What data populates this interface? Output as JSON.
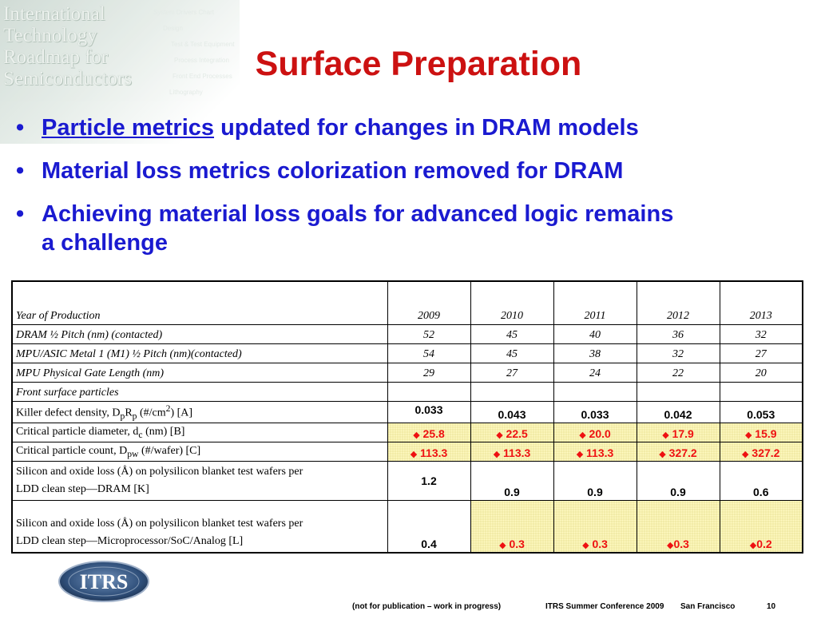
{
  "watermark": {
    "lines": [
      "International",
      "Technology",
      "Roadmap for",
      "Semiconductors"
    ],
    "menu": [
      "System Drivers Chart",
      "Design",
      "Test & Test Equipment",
      "Process Integration",
      "Front End Processes",
      "Lithography"
    ]
  },
  "title": "Surface Preparation",
  "bullets": [
    {
      "lead": "Particle metrics",
      "rest": " updated for changes in DRAM models"
    },
    {
      "lead": "",
      "rest": "Material loss metrics colorization removed for DRAM"
    },
    {
      "lead": "",
      "rest": "Achieving material loss goals for advanced logic remains a challenge"
    }
  ],
  "bullet_char": "•",
  "table": {
    "header": {
      "label": "Year of Production",
      "years": [
        "2009",
        "2010",
        "2011",
        "2012",
        "2013"
      ]
    },
    "rows": [
      {
        "label": "DRAM ½ Pitch (nm) (contacted)",
        "values": [
          "52",
          "45",
          "40",
          "36",
          "32"
        ]
      },
      {
        "label": "MPU/ASIC Metal 1 (M1) ½ Pitch (nm)(contacted)",
        "values": [
          "54",
          "45",
          "38",
          "32",
          "27"
        ]
      },
      {
        "label": "MPU Physical Gate Length (nm)",
        "values": [
          "29",
          "27",
          "24",
          "22",
          "20"
        ]
      },
      {
        "label": "Front surface particles"
      },
      {
        "label_a": "Killer defect density, D",
        "sub_a": "p",
        "label_b": "R",
        "sub_b": "p",
        "label_c": " (#/cm",
        "sup": "2",
        "label_d": ") [A]",
        "values": [
          "0.033",
          "0.043",
          "0.033",
          "0.042",
          "0.053"
        ]
      },
      {
        "label_a": "Critical particle diameter, d",
        "sub_a": "c",
        "label_b": " (nm) [B]",
        "values": [
          "25.8",
          "22.5",
          "20.0",
          "17.9",
          "15.9"
        ]
      },
      {
        "label_a": "Critical particle count, D",
        "sub_a": "pw",
        "label_b": " (#/wafer) [C]",
        "values": [
          "113.3",
          "113.3",
          "113.3",
          "327.2",
          "327.2"
        ]
      },
      {
        "line1": "Silicon and oxide loss (Å) on polysilicon blanket test wafers per",
        "line2": "LDD clean step—DRAM [K]",
        "values": [
          "1.2",
          "0.9",
          "0.9",
          "0.9",
          "0.6"
        ]
      },
      {
        "line1": "Silicon and oxide loss (Å) on polysilicon blanket test wafers per",
        "line2": "LDD clean step—Microprocessor/SoC/Analog [L]",
        "values": [
          "0.4",
          "0.3",
          "0.3",
          "0.3",
          "0.2"
        ]
      }
    ],
    "marker": "◆"
  },
  "logo_text": "ITRS",
  "footer": {
    "note": "(not for publication – work in progress)",
    "conference": "ITRS Summer Conference 2009",
    "city": "San Francisco",
    "page": "10"
  },
  "colors": {
    "title": "#cc1111",
    "bullets": "#1a1ad0",
    "highlight": "#fff9c2",
    "marker": "#ee1111"
  }
}
